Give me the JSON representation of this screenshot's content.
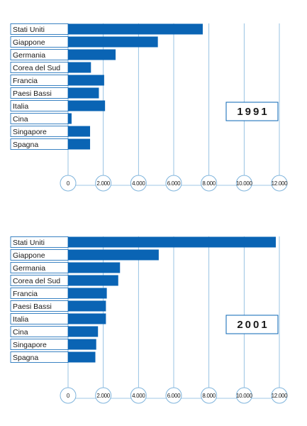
{
  "chart_data": [
    {
      "type": "bar",
      "orientation": "horizontal",
      "annotation": "1991",
      "categories": [
        "Stati Uniti",
        "Giappone",
        "Germania",
        "Corea del Sud",
        "Francia",
        "Paesi Bassi",
        "Italia",
        "Cina",
        "Singapore",
        "Spagna"
      ],
      "values": [
        7650,
        5100,
        2700,
        1300,
        2050,
        1750,
        2100,
        200,
        1250,
        1250
      ],
      "xlim": [
        0,
        12000
      ],
      "ticks": [
        "0",
        "2.000",
        "4.000",
        "6.000",
        "8.000",
        "10.000",
        "12.000"
      ],
      "bar_color": "#0a64b4",
      "grid": true
    },
    {
      "type": "bar",
      "orientation": "horizontal",
      "annotation": "2001",
      "categories": [
        "Stati Uniti",
        "Giappone",
        "Germania",
        "Corea del Sud",
        "Francia",
        "Paesi Bassi",
        "Italia",
        "Cina",
        "Singapore",
        "Spagna"
      ],
      "values": [
        11800,
        5150,
        2950,
        2850,
        2200,
        2150,
        2150,
        1700,
        1600,
        1550
      ],
      "xlim": [
        0,
        12000
      ],
      "ticks": [
        "0",
        "2.000",
        "4.000",
        "6.000",
        "8.000",
        "10.000",
        "12.000"
      ],
      "bar_color": "#0a64b4",
      "grid": true
    }
  ]
}
